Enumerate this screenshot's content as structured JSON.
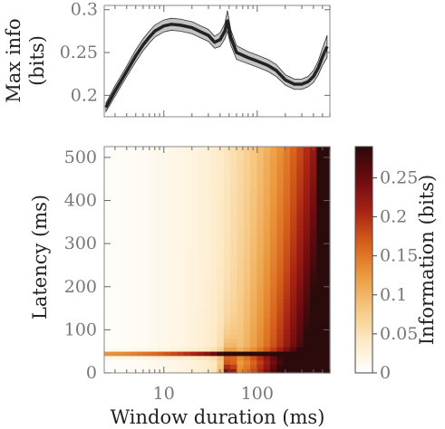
{
  "chart_data": [
    {
      "type": "line",
      "xlabel": "",
      "ylabel": "Max info\n(bits)",
      "xscale": "log",
      "xlim": [
        2.3,
        600
      ],
      "ylim": [
        0.175,
        0.305
      ],
      "yticks": [
        0.2,
        0.25,
        0.3
      ],
      "ytick_labels": [
        "0.2",
        "0.25",
        "0.3"
      ],
      "series": [
        {
          "x": [
            2.4,
            3,
            4,
            5,
            6,
            7,
            8,
            10,
            12,
            15,
            20,
            25,
            30,
            35,
            40,
            45,
            48,
            52,
            60,
            80,
            100,
            130,
            160,
            200,
            250,
            300,
            350,
            400,
            450,
            500,
            560
          ],
          "y": [
            0.186,
            0.205,
            0.228,
            0.246,
            0.259,
            0.268,
            0.275,
            0.281,
            0.283,
            0.282,
            0.279,
            0.274,
            0.27,
            0.262,
            0.265,
            0.275,
            0.287,
            0.268,
            0.25,
            0.244,
            0.24,
            0.235,
            0.229,
            0.218,
            0.213,
            0.213,
            0.216,
            0.222,
            0.232,
            0.245,
            0.257
          ],
          "err": [
            0.005,
            0.006,
            0.006,
            0.007,
            0.007,
            0.007,
            0.007,
            0.007,
            0.007,
            0.007,
            0.007,
            0.007,
            0.007,
            0.007,
            0.008,
            0.009,
            0.012,
            0.009,
            0.008,
            0.007,
            0.007,
            0.007,
            0.007,
            0.006,
            0.006,
            0.006,
            0.006,
            0.007,
            0.008,
            0.01,
            0.013
          ],
          "line_color": "#222222",
          "band_color": "#c4c4c4"
        }
      ]
    },
    {
      "type": "heatmap",
      "xlabel": "Window duration (ms)",
      "ylabel": "Latency (ms)",
      "xscale": "log",
      "xlim": [
        2.3,
        600
      ],
      "ylim": [
        0,
        525
      ],
      "xticks": [
        10,
        100
      ],
      "xtick_labels": [
        "10",
        "100"
      ],
      "yticks": [
        0,
        100,
        200,
        300,
        400,
        500
      ],
      "ytick_labels": [
        "0",
        "100",
        "200",
        "300",
        "400",
        "500"
      ],
      "colorbar": {
        "label": "Information (bits)",
        "range": [
          0,
          0.29
        ],
        "ticks": [
          0,
          0.05,
          0.1,
          0.15,
          0.2,
          0.25
        ],
        "tick_labels": [
          "0",
          "0.05",
          "0.1",
          "0.15",
          "0.2",
          "0.25"
        ],
        "colormap": [
          "#ffffff",
          "#fde9c4",
          "#f6c781",
          "#eb9a3e",
          "#d7611b",
          "#a82313",
          "#6d0a10",
          "#2a0a0a"
        ]
      },
      "notes": "Information peaks at latency ~45 ms (thin band) and near window 50 ms; grows with window duration; max at longest windows."
    }
  ]
}
